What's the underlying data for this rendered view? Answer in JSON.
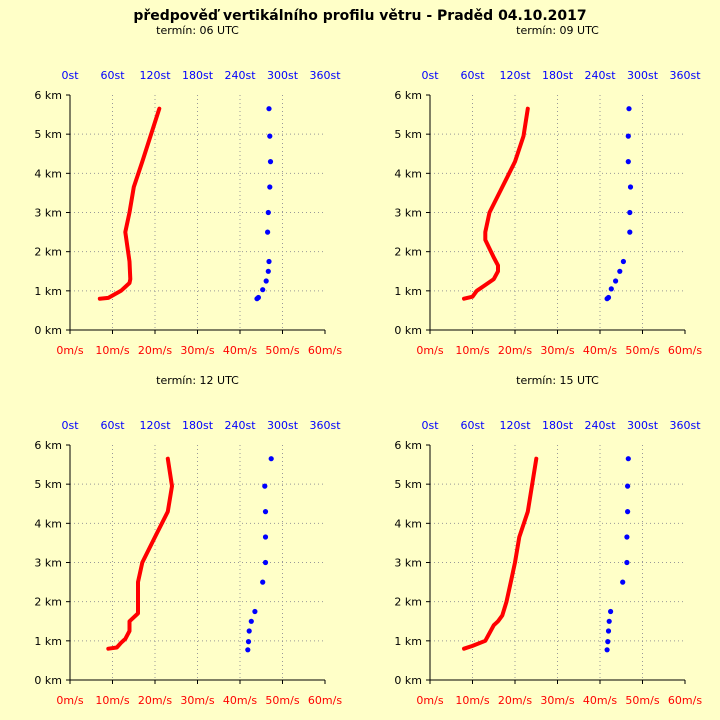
{
  "title": "předpověď vertikálního profilu větru - Praděd 04.10.2017",
  "colors": {
    "background": "#ffffc8",
    "speed": "#ff0000",
    "direction": "#0000ff",
    "grid": "#999999",
    "axis": "#000000"
  },
  "chart_data": [
    {
      "type": "line",
      "title": "termín: 06 UTC",
      "ylabel_ticks": [
        "0 km",
        "1 km",
        "2 km",
        "3 km",
        "4 km",
        "5 km",
        "6 km"
      ],
      "ylim": [
        0,
        6
      ],
      "speed_axis": {
        "ticks": [
          "0m/s",
          "10m/s",
          "20m/s",
          "30m/s",
          "40m/s",
          "50m/s",
          "60m/s"
        ],
        "xlim": [
          0,
          60
        ]
      },
      "direction_axis": {
        "ticks": [
          "0st",
          "60st",
          "120st",
          "180st",
          "240st",
          "300st",
          "360st"
        ],
        "xlim": [
          0,
          360
        ]
      },
      "series": [
        {
          "name": "speed",
          "points": [
            [
              7,
              0.8
            ],
            [
              9,
              0.82
            ],
            [
              12,
              1.0
            ],
            [
              14,
              1.2
            ],
            [
              14.2,
              1.3
            ],
            [
              14,
              1.75
            ],
            [
              13,
              2.5
            ],
            [
              14,
              3.0
            ],
            [
              15,
              3.65
            ],
            [
              17,
              4.3
            ],
            [
              21,
              5.65
            ]
          ]
        },
        {
          "name": "direction",
          "points": [
            [
              264,
              0.8
            ],
            [
              266,
              0.83
            ],
            [
              272,
              1.03
            ],
            [
              277,
              1.25
            ],
            [
              280,
              1.5
            ],
            [
              281,
              1.75
            ],
            [
              279,
              2.5
            ],
            [
              280,
              3.0
            ],
            [
              282,
              3.65
            ],
            [
              283,
              4.3
            ],
            [
              282,
              4.95
            ],
            [
              281,
              5.65
            ]
          ]
        }
      ]
    },
    {
      "type": "line",
      "title": "termín: 09 UTC",
      "ylabel_ticks": [
        "0 km",
        "1 km",
        "2 km",
        "3 km",
        "4 km",
        "5 km",
        "6 km"
      ],
      "ylim": [
        0,
        6
      ],
      "speed_axis": {
        "ticks": [
          "0m/s",
          "10m/s",
          "20m/s",
          "30m/s",
          "40m/s",
          "50m/s",
          "60m/s"
        ],
        "xlim": [
          0,
          60
        ]
      },
      "direction_axis": {
        "ticks": [
          "0st",
          "60st",
          "120st",
          "180st",
          "240st",
          "300st",
          "360st"
        ],
        "xlim": [
          0,
          360
        ]
      },
      "series": [
        {
          "name": "speed",
          "points": [
            [
              8,
              0.8
            ],
            [
              10,
              0.85
            ],
            [
              11,
              1.0
            ],
            [
              13,
              1.15
            ],
            [
              15,
              1.3
            ],
            [
              16,
              1.5
            ],
            [
              16,
              1.65
            ],
            [
              15,
              1.85
            ],
            [
              13,
              2.3
            ],
            [
              13,
              2.5
            ],
            [
              14,
              3.0
            ],
            [
              17,
              3.65
            ],
            [
              20,
              4.3
            ],
            [
              22,
              4.95
            ],
            [
              23,
              5.65
            ]
          ]
        },
        {
          "name": "direction",
          "points": [
            [
              250,
              0.8
            ],
            [
              252,
              0.83
            ],
            [
              256,
              1.05
            ],
            [
              262,
              1.25
            ],
            [
              268,
              1.5
            ],
            [
              273,
              1.75
            ],
            [
              282,
              2.5
            ],
            [
              282,
              3.0
            ],
            [
              283,
              3.65
            ],
            [
              280,
              4.3
            ],
            [
              280,
              4.95
            ],
            [
              281,
              5.65
            ]
          ]
        }
      ]
    },
    {
      "type": "line",
      "title": "termín: 12 UTC",
      "ylabel_ticks": [
        "0 km",
        "1 km",
        "2 km",
        "3 km",
        "4 km",
        "5 km",
        "6 km"
      ],
      "ylim": [
        0,
        6
      ],
      "speed_axis": {
        "ticks": [
          "0m/s",
          "10m/s",
          "20m/s",
          "30m/s",
          "40m/s",
          "50m/s",
          "60m/s"
        ],
        "xlim": [
          0,
          60
        ]
      },
      "direction_axis": {
        "ticks": [
          "0st",
          "60st",
          "120st",
          "180st",
          "240st",
          "300st",
          "360st"
        ],
        "xlim": [
          0,
          360
        ]
      },
      "series": [
        {
          "name": "speed",
          "points": [
            [
              9,
              0.8
            ],
            [
              11,
              0.83
            ],
            [
              12,
              0.95
            ],
            [
              13,
              1.05
            ],
            [
              14,
              1.25
            ],
            [
              14,
              1.5
            ],
            [
              16,
              1.7
            ],
            [
              16,
              2.5
            ],
            [
              17,
              3.0
            ],
            [
              20,
              3.65
            ],
            [
              23,
              4.3
            ],
            [
              24,
              4.95
            ],
            [
              23,
              5.65
            ]
          ]
        },
        {
          "name": "direction",
          "points": [
            [
              251,
              0.77
            ],
            [
              252,
              0.98
            ],
            [
              253,
              1.25
            ],
            [
              256,
              1.5
            ],
            [
              261,
              1.75
            ],
            [
              272,
              2.5
            ],
            [
              276,
              3.0
            ],
            [
              276,
              3.65
            ],
            [
              276,
              4.3
            ],
            [
              275,
              4.95
            ],
            [
              284,
              5.65
            ]
          ]
        }
      ]
    },
    {
      "type": "line",
      "title": "termín: 15 UTC",
      "ylabel_ticks": [
        "0 km",
        "1 km",
        "2 km",
        "3 km",
        "4 km",
        "5 km",
        "6 km"
      ],
      "ylim": [
        0,
        6
      ],
      "speed_axis": {
        "ticks": [
          "0m/s",
          "10m/s",
          "20m/s",
          "30m/s",
          "40m/s",
          "50m/s",
          "60m/s"
        ],
        "xlim": [
          0,
          60
        ]
      },
      "direction_axis": {
        "ticks": [
          "0st",
          "60st",
          "120st",
          "180st",
          "240st",
          "300st",
          "360st"
        ],
        "xlim": [
          0,
          360
        ]
      },
      "series": [
        {
          "name": "speed",
          "points": [
            [
              8,
              0.8
            ],
            [
              10,
              0.87
            ],
            [
              13,
              1.0
            ],
            [
              15,
              1.4
            ],
            [
              16,
              1.5
            ],
            [
              17,
              1.65
            ],
            [
              18,
              2.0
            ],
            [
              19,
              2.5
            ],
            [
              20,
              3.0
            ],
            [
              21,
              3.65
            ],
            [
              23,
              4.3
            ],
            [
              25,
              5.65
            ]
          ]
        },
        {
          "name": "direction",
          "points": [
            [
              250,
              0.77
            ],
            [
              251,
              0.98
            ],
            [
              252,
              1.25
            ],
            [
              253,
              1.5
            ],
            [
              255,
              1.75
            ],
            [
              272,
              2.5
            ],
            [
              278,
              3.0
            ],
            [
              278,
              3.65
            ],
            [
              279,
              4.3
            ],
            [
              279,
              4.95
            ],
            [
              280,
              5.65
            ]
          ]
        }
      ]
    }
  ]
}
